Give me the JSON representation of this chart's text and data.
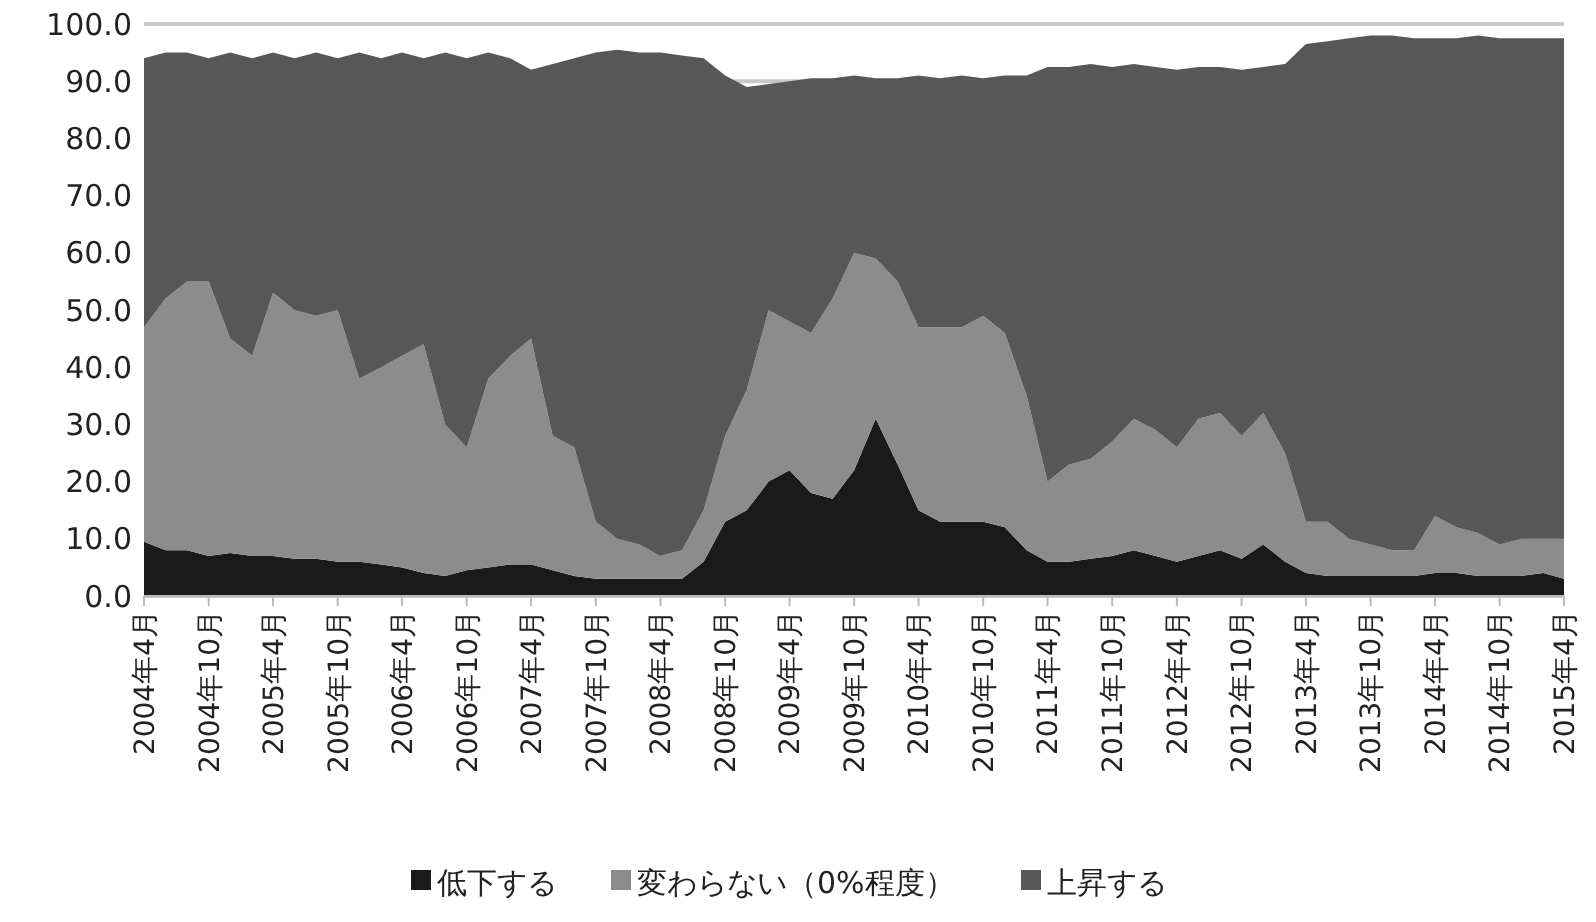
{
  "chart_data": {
    "type": "area",
    "stacked": true,
    "grid": "y",
    "legend": "bottom",
    "x": [
      "2004-04",
      "2004-06",
      "2004-08",
      "2004-10",
      "2004-12",
      "2005-02",
      "2005-04",
      "2005-06",
      "2005-08",
      "2005-10",
      "2005-12",
      "2006-02",
      "2006-04",
      "2006-06",
      "2006-08",
      "2006-10",
      "2006-12",
      "2007-02",
      "2007-04",
      "2007-06",
      "2007-08",
      "2007-10",
      "2007-12",
      "2008-02",
      "2008-04",
      "2008-06",
      "2008-08",
      "2008-10",
      "2008-12",
      "2009-02",
      "2009-04",
      "2009-06",
      "2009-08",
      "2009-10",
      "2009-12",
      "2010-02",
      "2010-04",
      "2010-06",
      "2010-08",
      "2010-10",
      "2010-12",
      "2011-02",
      "2011-04",
      "2011-06",
      "2011-08",
      "2011-10",
      "2011-12",
      "2012-02",
      "2012-04",
      "2012-06",
      "2012-08",
      "2012-10",
      "2012-12",
      "2013-02",
      "2013-04",
      "2013-06",
      "2013-08",
      "2013-10",
      "2013-12",
      "2014-02",
      "2014-04",
      "2014-06",
      "2014-08",
      "2014-10",
      "2014-12",
      "2015-02",
      "2015-04"
    ],
    "series": [
      {
        "name": "低下する",
        "color": "#1a1a1a",
        "values": [
          9.5,
          8,
          8,
          7,
          7.5,
          7,
          7,
          6.5,
          6.5,
          6,
          6,
          5.5,
          5,
          4,
          3.5,
          4.5,
          5,
          5.5,
          5.5,
          4.5,
          3.5,
          3,
          3,
          3,
          3,
          3,
          6,
          13,
          15,
          20,
          22,
          18,
          17,
          22,
          31,
          23,
          15,
          13,
          13,
          13,
          12,
          8,
          6,
          6,
          6.5,
          7,
          8,
          7,
          6,
          7,
          8,
          6.5,
          9,
          6,
          4,
          3.5,
          3.5,
          3.5,
          3.5,
          3.5,
          4,
          4,
          3.5,
          3.5,
          3.5,
          4,
          3
        ]
      },
      {
        "name": "変わらない（0%程度）",
        "color": "#8c8c8c",
        "values": [
          37.5,
          44,
          47,
          48,
          37.5,
          35,
          46,
          43.5,
          42.5,
          44,
          32,
          34.5,
          37,
          40,
          26.5,
          21.5,
          33,
          36.5,
          39.5,
          23.5,
          22.5,
          10,
          7,
          6,
          4,
          5,
          9,
          15,
          21,
          30,
          26,
          28,
          35,
          38,
          28,
          32,
          32,
          34,
          34,
          36,
          34,
          27,
          14,
          17,
          17.5,
          20,
          23,
          22,
          20,
          24,
          24,
          21.5,
          23,
          19,
          9,
          9.5,
          6.5,
          5.5,
          4.5,
          4.5,
          10,
          8,
          7.5,
          5.5,
          6.5,
          6,
          7
        ]
      },
      {
        "name": "上昇する",
        "color": "#575757",
        "values": [
          47,
          43,
          40,
          39,
          50,
          52,
          42,
          44,
          46,
          44,
          57,
          54,
          53,
          50,
          65,
          68,
          57,
          52,
          47,
          65,
          68,
          82,
          85.5,
          86,
          88,
          86.5,
          79,
          63,
          53,
          39.5,
          42,
          44.5,
          38.5,
          31,
          31.5,
          35.5,
          44,
          43.5,
          44,
          41.5,
          45,
          56,
          72.5,
          69.5,
          69,
          65.5,
          62,
          63.5,
          66,
          61.5,
          60.5,
          64,
          60.5,
          68,
          83.5,
          84,
          87.5,
          89,
          90,
          89.5,
          83.5,
          85.5,
          87,
          88.5,
          87.5,
          87.5,
          87.5
        ]
      }
    ],
    "xlim": [
      "2004-04",
      "2015-04"
    ],
    "xticks": [
      {
        "value": "2004-04",
        "label": "2004年4月"
      },
      {
        "value": "2004-10",
        "label": "2004年10月"
      },
      {
        "value": "2005-04",
        "label": "2005年4月"
      },
      {
        "value": "2005-10",
        "label": "2005年10月"
      },
      {
        "value": "2006-04",
        "label": "2006年4月"
      },
      {
        "value": "2006-10",
        "label": "2006年10月"
      },
      {
        "value": "2007-04",
        "label": "2007年4月"
      },
      {
        "value": "2007-10",
        "label": "2007年10月"
      },
      {
        "value": "2008-04",
        "label": "2008年4月"
      },
      {
        "value": "2008-10",
        "label": "2008年10月"
      },
      {
        "value": "2009-04",
        "label": "2009年4月"
      },
      {
        "value": "2009-10",
        "label": "2009年10月"
      },
      {
        "value": "2010-04",
        "label": "2010年4月"
      },
      {
        "value": "2010-10",
        "label": "2010年10月"
      },
      {
        "value": "2011-04",
        "label": "2011年4月"
      },
      {
        "value": "2011-10",
        "label": "2011年10月"
      },
      {
        "value": "2012-04",
        "label": "2012年4月"
      },
      {
        "value": "2012-10",
        "label": "2012年10月"
      },
      {
        "value": "2013-04",
        "label": "2013年4月"
      },
      {
        "value": "2013-10",
        "label": "2013年10月"
      },
      {
        "value": "2014-04",
        "label": "2014年4月"
      },
      {
        "value": "2014-10",
        "label": "2014年10月"
      },
      {
        "value": "2015-04",
        "label": "2015年4月"
      }
    ],
    "ylim": [
      0,
      100
    ],
    "yticks": [
      {
        "value": 0,
        "label": "0.0"
      },
      {
        "value": 10,
        "label": "10.0"
      },
      {
        "value": 20,
        "label": "20.0"
      },
      {
        "value": 30,
        "label": "30.0"
      },
      {
        "value": 40,
        "label": "40.0"
      },
      {
        "value": 50,
        "label": "50.0"
      },
      {
        "value": 60,
        "label": "60.0"
      },
      {
        "value": 70,
        "label": "70.0"
      },
      {
        "value": 80,
        "label": "80.0"
      },
      {
        "value": 90,
        "label": "90.0"
      },
      {
        "value": 100,
        "label": "100.0"
      }
    ]
  }
}
